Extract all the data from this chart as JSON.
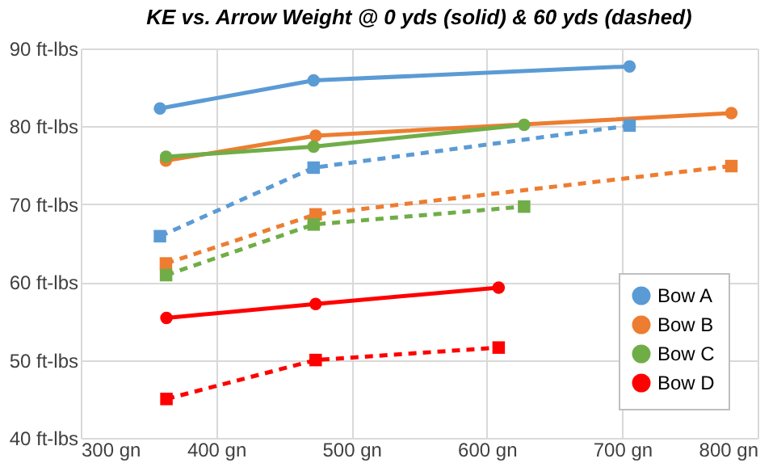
{
  "chart_data": {
    "type": "line",
    "title": "KE vs. Arrow Weight @ 0 yds (solid) & 60 yds (dashed)",
    "xlim": [
      300,
      800
    ],
    "ylim": [
      40,
      90
    ],
    "xticks": [
      {
        "value": 300,
        "label": "300 gn"
      },
      {
        "value": 400,
        "label": "400 gn"
      },
      {
        "value": 500,
        "label": "500 gn"
      },
      {
        "value": 600,
        "label": "600 gn"
      },
      {
        "value": 700,
        "label": "700 gn"
      },
      {
        "value": 800,
        "label": "800 gn"
      }
    ],
    "yticks": [
      {
        "value": 40,
        "label": "40 ft-lbs"
      },
      {
        "value": 50,
        "label": "50 ft-lbs"
      },
      {
        "value": 60,
        "label": "60 ft-lbs"
      },
      {
        "value": 70,
        "label": "70 ft-lbs"
      },
      {
        "value": 80,
        "label": "80 ft-lbs"
      },
      {
        "value": 90,
        "label": "90 ft-lbs"
      }
    ],
    "grid": true,
    "legend": "bottom right",
    "series": [
      {
        "name": "Bow A",
        "color": "#5b9bd5",
        "marker": "circle",
        "line_style": "solid",
        "x": [
          358.5,
          472,
          705.4
        ],
        "values": [
          82.3,
          85.9,
          87.7
        ]
      },
      {
        "name": "Bow B",
        "color": "#ed7d31",
        "marker": "circle",
        "line_style": "solid",
        "x": [
          362.9,
          473.5,
          780.6
        ],
        "values": [
          75.6,
          78.8,
          81.7
        ]
      },
      {
        "name": "Bow C",
        "color": "#70ad47",
        "marker": "circle",
        "line_style": "solid",
        "x": [
          363,
          472,
          627.5
        ],
        "values": [
          76.1,
          77.4,
          80.2
        ]
      },
      {
        "name": "Bow D",
        "color": "#ff0000",
        "marker": "circle",
        "line_style": "solid",
        "x": [
          363.3,
          473.5,
          608.7
        ],
        "values": [
          55.4,
          57.2,
          59.3
        ]
      },
      {
        "color": "#5b9bd5",
        "marker": "square",
        "line_style": "dashed",
        "x": [
          358.5,
          472,
          705.4
        ],
        "values": [
          65.9,
          74.7,
          80.1
        ]
      },
      {
        "color": "#ed7d31",
        "marker": "square",
        "line_style": "dashed",
        "x": [
          362.9,
          473.5,
          780.6
        ],
        "values": [
          62.4,
          68.7,
          74.9
        ]
      },
      {
        "color": "#70ad47",
        "marker": "square",
        "line_style": "dashed",
        "x": [
          363,
          472,
          627.5
        ],
        "values": [
          60.9,
          67.4,
          69.7
        ]
      },
      {
        "color": "#ff0000",
        "marker": "square",
        "line_style": "dashed",
        "x": [
          363.3,
          473.5,
          608.7
        ],
        "values": [
          45.0,
          50.0,
          51.6
        ]
      }
    ]
  }
}
